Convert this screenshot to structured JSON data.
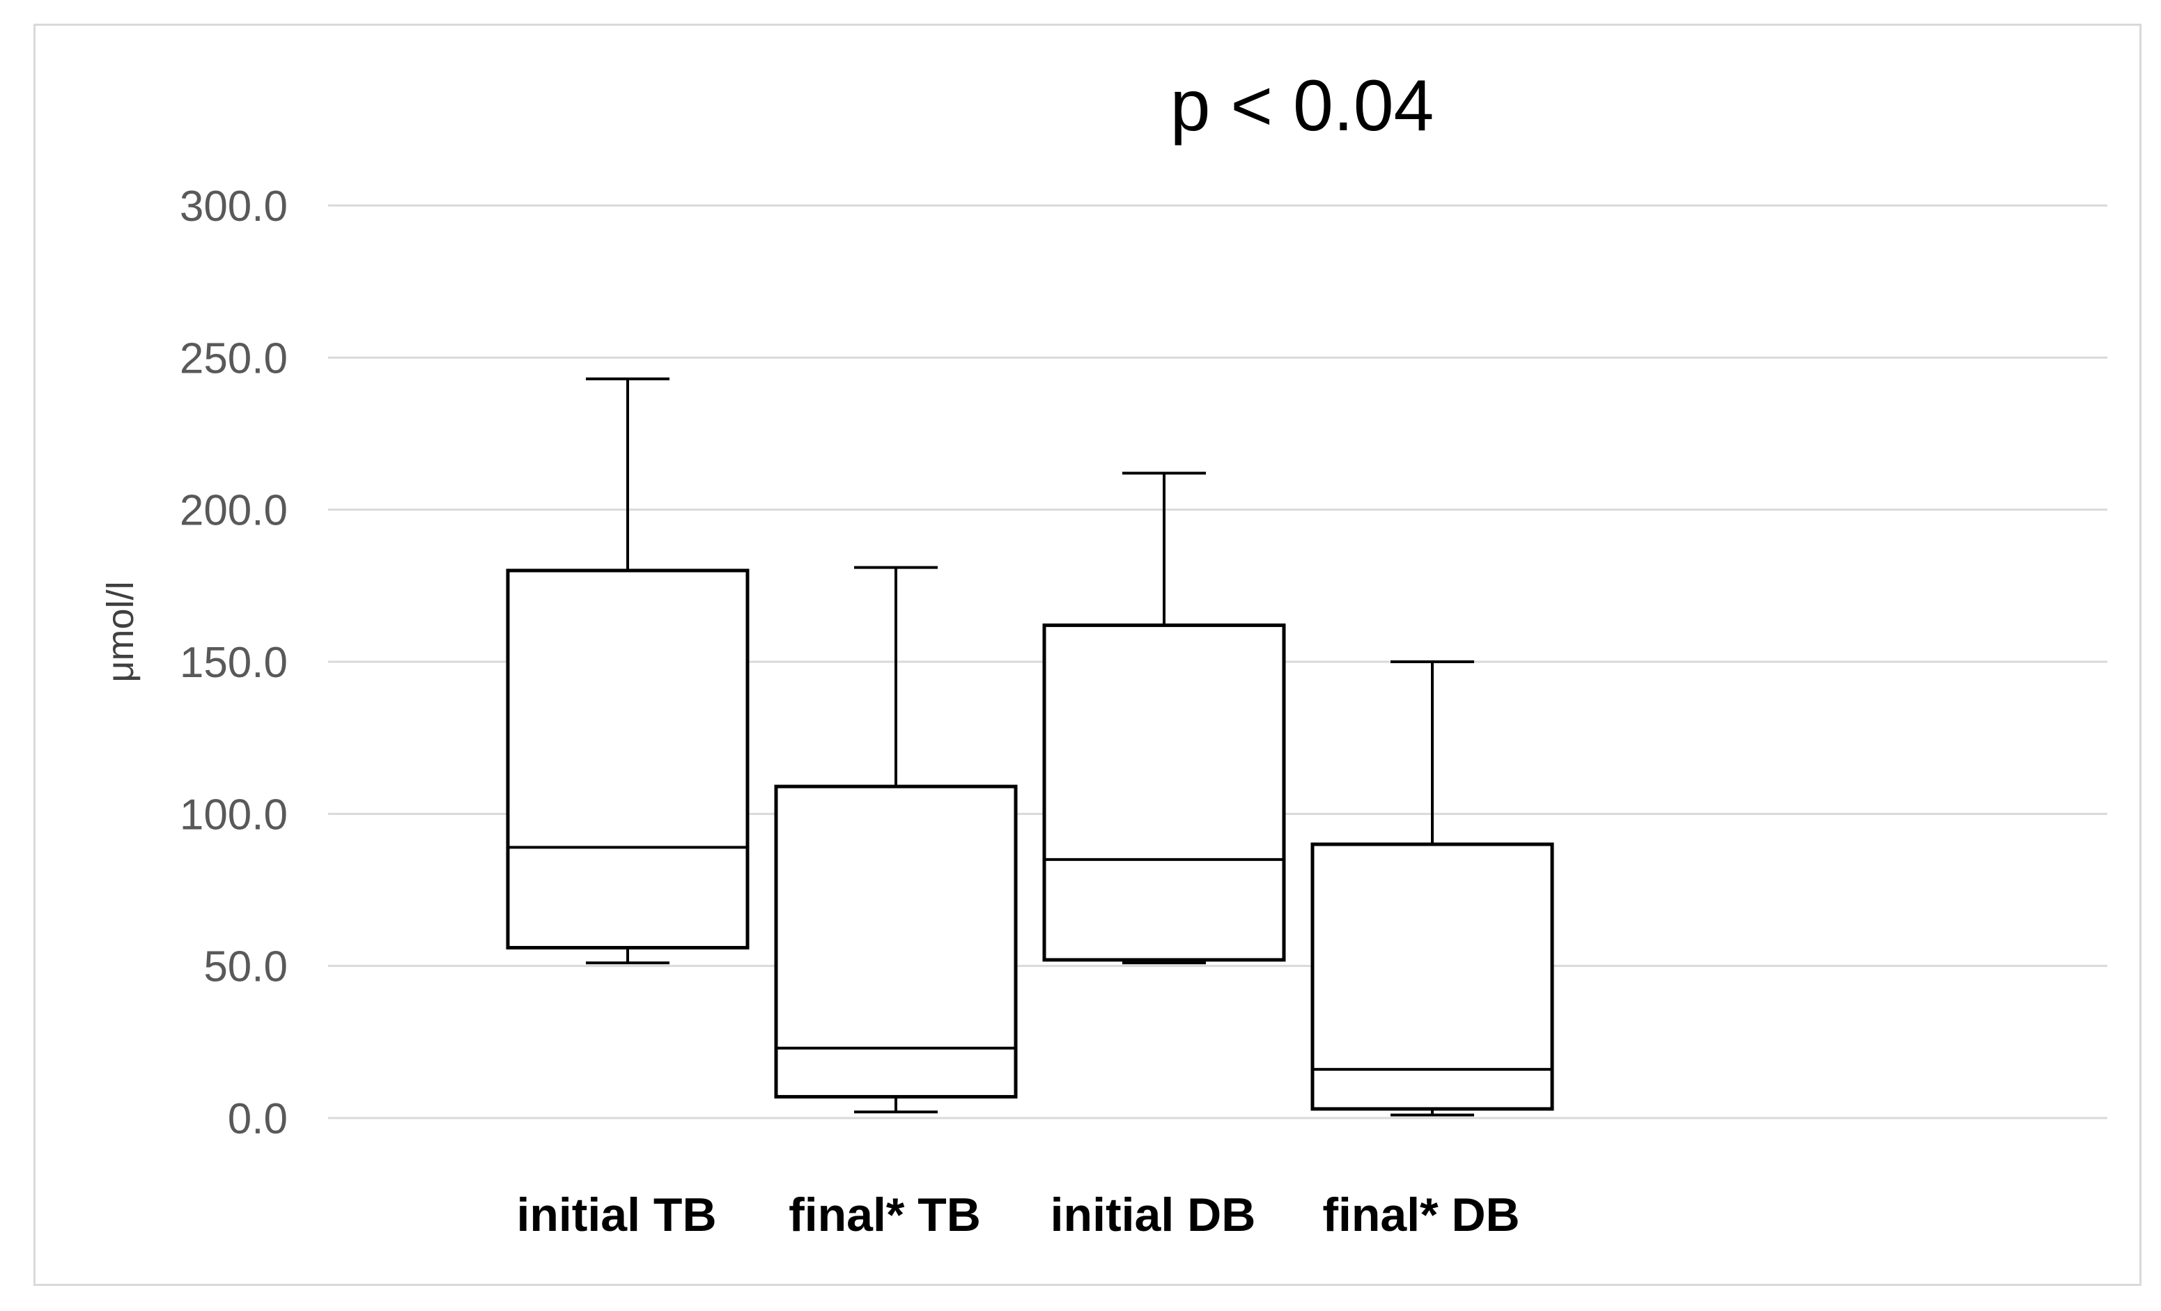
{
  "chart_data": {
    "type": "boxplot",
    "title": "p < 0.04",
    "xlabel": "",
    "ylabel": "μmol/l",
    "ylim": [
      0,
      300
    ],
    "yticks": [
      "0.0",
      "50.0",
      "100.0",
      "150.0",
      "200.0",
      "250.0",
      "300.0"
    ],
    "ytick_values": [
      0,
      50,
      100,
      150,
      200,
      250,
      300
    ],
    "grid": true,
    "categories": [
      "initial TB",
      "final* TB",
      "initial DB",
      "final* DB"
    ],
    "boxes": [
      {
        "name": "initial TB",
        "min": 51,
        "q1": 56,
        "median": 89,
        "q3": 180,
        "max": 243
      },
      {
        "name": "final* TB",
        "min": 2,
        "q1": 7,
        "median": 23,
        "q3": 109,
        "max": 181
      },
      {
        "name": "initial DB",
        "min": 51,
        "q1": 52,
        "median": 85,
        "q3": 162,
        "max": 212
      },
      {
        "name": "final* DB",
        "min": 1,
        "q1": 3,
        "median": 16,
        "q3": 90,
        "max": 150
      }
    ]
  },
  "colors": {
    "grid": "#d9d9d9",
    "box": "#000000",
    "axis_text": "#595959"
  }
}
